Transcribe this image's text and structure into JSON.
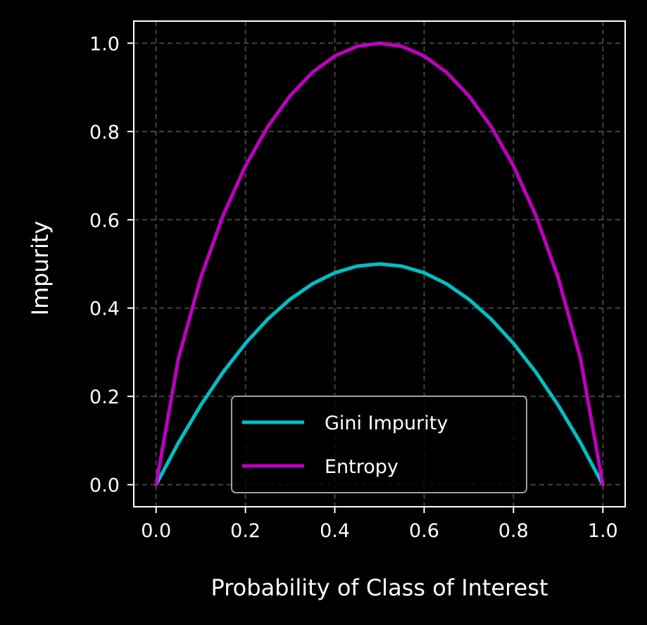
{
  "chart_data": {
    "type": "line",
    "xlabel": "Probability of Class of Interest",
    "ylabel": "Impurity",
    "xlim": [
      -0.05,
      1.05
    ],
    "ylim": [
      -0.05,
      1.05
    ],
    "xticks": [
      "0.0",
      "0.2",
      "0.4",
      "0.6",
      "0.8",
      "1.0"
    ],
    "yticks": [
      "0.0",
      "0.2",
      "0.4",
      "0.6",
      "0.8",
      "1.0"
    ],
    "grid": true,
    "legend_position": "lower center",
    "x": [
      0.0,
      0.05,
      0.1,
      0.15,
      0.2,
      0.25,
      0.3,
      0.35,
      0.4,
      0.45,
      0.5,
      0.55,
      0.6,
      0.65,
      0.7,
      0.75,
      0.8,
      0.85,
      0.9,
      0.95,
      1.0
    ],
    "series": [
      {
        "name": "Gini Impurity",
        "color": "#00bfc4",
        "values": [
          0.0,
          0.095,
          0.18,
          0.255,
          0.32,
          0.375,
          0.42,
          0.455,
          0.48,
          0.495,
          0.5,
          0.495,
          0.48,
          0.455,
          0.42,
          0.375,
          0.32,
          0.255,
          0.18,
          0.095,
          0.0
        ]
      },
      {
        "name": "Entropy",
        "color": "#bf00bf",
        "values": [
          0.0,
          0.286,
          0.469,
          0.61,
          0.722,
          0.811,
          0.881,
          0.934,
          0.971,
          0.993,
          1.0,
          0.993,
          0.971,
          0.934,
          0.881,
          0.811,
          0.722,
          0.61,
          0.469,
          0.286,
          0.0
        ]
      }
    ]
  }
}
